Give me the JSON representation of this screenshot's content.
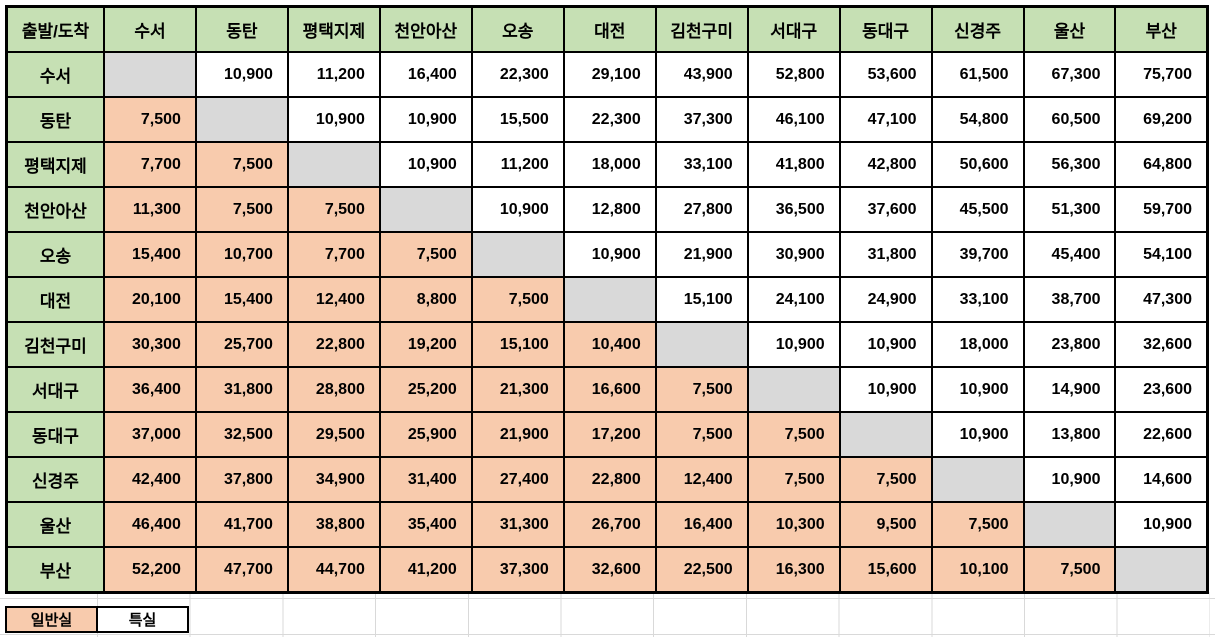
{
  "colors": {
    "header_bg": "#C6E0B4",
    "general_bg": "#F8CBAD",
    "special_bg": "#FFFFFF",
    "diagonal_bg": "#D9D9D9",
    "border": "#000000",
    "gridline": "#D9D9D9"
  },
  "fare_table": {
    "type": "table",
    "corner_label": "출발/도착",
    "stations": [
      "수서",
      "동탄",
      "평택지제",
      "천안아산",
      "오송",
      "대전",
      "김천구미",
      "서대구",
      "동대구",
      "신경주",
      "울산",
      "부산"
    ],
    "rows": [
      {
        "station": "수서",
        "fares": [
          null,
          "10,900",
          "11,200",
          "16,400",
          "22,300",
          "29,100",
          "43,900",
          "52,800",
          "53,600",
          "61,500",
          "67,300",
          "75,700"
        ]
      },
      {
        "station": "동탄",
        "fares": [
          "7,500",
          null,
          "10,900",
          "10,900",
          "15,500",
          "22,300",
          "37,300",
          "46,100",
          "47,100",
          "54,800",
          "60,500",
          "69,200"
        ]
      },
      {
        "station": "평택지제",
        "fares": [
          "7,700",
          "7,500",
          null,
          "10,900",
          "11,200",
          "18,000",
          "33,100",
          "41,800",
          "42,800",
          "50,600",
          "56,300",
          "64,800"
        ]
      },
      {
        "station": "천안아산",
        "fares": [
          "11,300",
          "7,500",
          "7,500",
          null,
          "10,900",
          "12,800",
          "27,800",
          "36,500",
          "37,600",
          "45,500",
          "51,300",
          "59,700"
        ]
      },
      {
        "station": "오송",
        "fares": [
          "15,400",
          "10,700",
          "7,700",
          "7,500",
          null,
          "10,900",
          "21,900",
          "30,900",
          "31,800",
          "39,700",
          "45,400",
          "54,100"
        ]
      },
      {
        "station": "대전",
        "fares": [
          "20,100",
          "15,400",
          "12,400",
          "8,800",
          "7,500",
          null,
          "15,100",
          "24,100",
          "24,900",
          "33,100",
          "38,700",
          "47,300"
        ]
      },
      {
        "station": "김천구미",
        "fares": [
          "30,300",
          "25,700",
          "22,800",
          "19,200",
          "15,100",
          "10,400",
          null,
          "10,900",
          "10,900",
          "18,000",
          "23,800",
          "32,600"
        ]
      },
      {
        "station": "서대구",
        "fares": [
          "36,400",
          "31,800",
          "28,800",
          "25,200",
          "21,300",
          "16,600",
          "7,500",
          null,
          "10,900",
          "10,900",
          "14,900",
          "23,600"
        ]
      },
      {
        "station": "동대구",
        "fares": [
          "37,000",
          "32,500",
          "29,500",
          "25,900",
          "21,900",
          "17,200",
          "7,500",
          "7,500",
          null,
          "10,900",
          "13,800",
          "22,600"
        ]
      },
      {
        "station": "신경주",
        "fares": [
          "42,400",
          "37,800",
          "34,900",
          "31,400",
          "27,400",
          "22,800",
          "12,400",
          "7,500",
          "7,500",
          null,
          "10,900",
          "14,600"
        ]
      },
      {
        "station": "울산",
        "fares": [
          "46,400",
          "41,700",
          "38,800",
          "35,400",
          "31,300",
          "26,700",
          "16,400",
          "10,300",
          "9,500",
          "7,500",
          null,
          "10,900"
        ]
      },
      {
        "station": "부산",
        "fares": [
          "52,200",
          "47,700",
          "44,700",
          "41,200",
          "37,300",
          "32,600",
          "22,500",
          "16,300",
          "15,600",
          "10,100",
          "7,500",
          null
        ]
      }
    ]
  },
  "legend": {
    "general": {
      "label": "일반실"
    },
    "special": {
      "label": "특실"
    }
  }
}
